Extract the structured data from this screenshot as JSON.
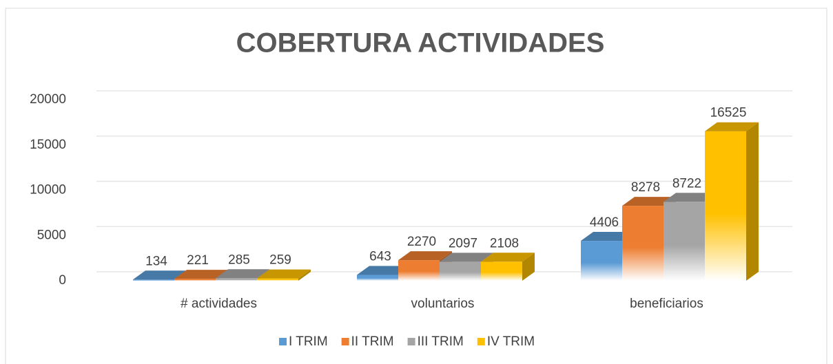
{
  "chart_data": {
    "type": "bar3d",
    "title": "COBERTURA ACTIVIDADES",
    "categories": [
      "# actividades",
      "voluntarios",
      "beneficiarios"
    ],
    "series": [
      {
        "name": "I TRIM",
        "color": "#5b9bd5",
        "values": [
          134,
          643,
          4406
        ]
      },
      {
        "name": "II TRIM",
        "color": "#ed7d31",
        "values": [
          221,
          2270,
          8278
        ]
      },
      {
        "name": "III TRIM",
        "color": "#a5a5a5",
        "values": [
          285,
          2097,
          8722
        ]
      },
      {
        "name": "IV TRIM",
        "color": "#ffc000",
        "values": [
          259,
          2108,
          16525
        ]
      }
    ],
    "ylim": [
      0,
      20000
    ],
    "yticks": [
      0,
      5000,
      10000,
      15000,
      20000
    ],
    "grid": true,
    "legend": "bottom"
  }
}
